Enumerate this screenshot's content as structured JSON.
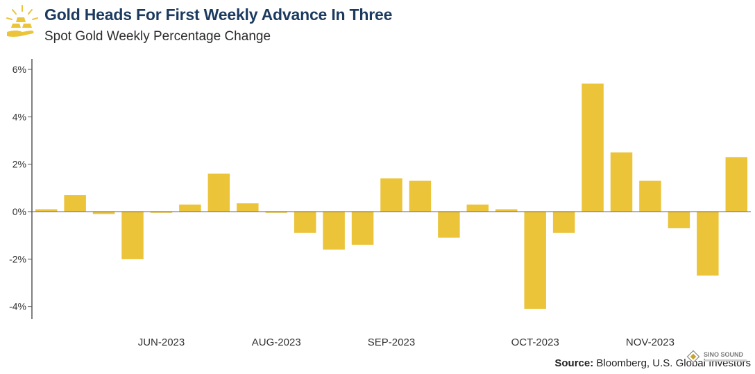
{
  "header": {
    "title": "Gold Heads For First Weekly Advance In Three",
    "subtitle": "Spot Gold Weekly Percentage Change",
    "logo_icon": "gold-bars-sunburst-icon"
  },
  "footer": {
    "source_label": "Source:",
    "source_text": "Bloomberg, U.S. Global Investors"
  },
  "watermark": {
    "text": "SINO SOUND",
    "icon": "diamond-logo-icon"
  },
  "colors": {
    "bar": "#EBC43A",
    "title": "#1B3A5E",
    "axis": "#555555"
  },
  "chart_data": {
    "type": "bar",
    "title": "Gold Heads For First Weekly Advance In Three",
    "subtitle": "Spot Gold Weekly Percentage Change",
    "xlabel": "",
    "ylabel": "",
    "ylim": [
      -5.2,
      6.5
    ],
    "yticks": [
      6,
      4,
      2,
      0,
      -2,
      -4
    ],
    "ytick_labels": [
      "6%",
      "4%",
      "2%",
      "0%",
      "-2%",
      "-4%"
    ],
    "grid": false,
    "legend": "none",
    "month_labels": [
      "JUN-2023",
      "AUG-2023",
      "SEP-2023",
      "OCT-2023",
      "NOV-2023"
    ],
    "month_label_after_bar": [
      4.5,
      8.5,
      12.5,
      17.5,
      21.5
    ],
    "values": [
      0.1,
      0.7,
      -0.1,
      -2.0,
      -0.05,
      0.3,
      1.6,
      0.35,
      -0.05,
      -0.9,
      -1.6,
      -1.4,
      1.4,
      1.3,
      -1.1,
      0.3,
      0.1,
      -4.1,
      -0.9,
      5.4,
      2.5,
      1.3,
      -0.7,
      -2.7,
      2.3
    ],
    "series": [
      {
        "values": [
          0.1,
          0.7,
          -0.1,
          -2.0,
          -0.05,
          0.3,
          1.6,
          0.35,
          -0.05,
          -0.9,
          -1.6,
          -1.4,
          1.4,
          1.3,
          -1.1,
          0.3,
          0.1,
          -4.1,
          -0.9,
          5.4,
          2.5,
          1.3,
          -0.7,
          -2.7,
          2.3
        ]
      }
    ]
  }
}
